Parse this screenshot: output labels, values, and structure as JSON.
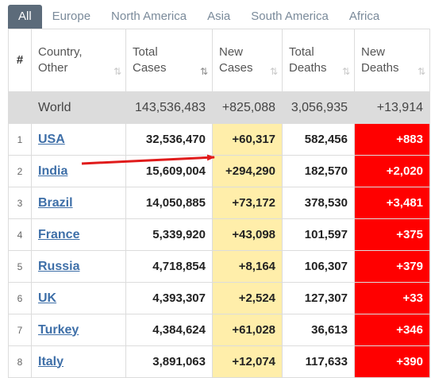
{
  "tabs": [
    "All",
    "Europe",
    "North America",
    "Asia",
    "South America",
    "Africa"
  ],
  "headers": {
    "hash": "#",
    "country_l1": "Country,",
    "country_l2": "Other",
    "total_cases_l1": "Total",
    "total_cases_l2": "Cases",
    "new_cases_l1": "New",
    "new_cases_l2": "Cases",
    "total_deaths_l1": "Total",
    "total_deaths_l2": "Deaths",
    "new_deaths_l1": "New",
    "new_deaths_l2": "Deaths"
  },
  "sort_icon": "⇅",
  "world": {
    "name": "World",
    "total_cases": "143,536,483",
    "new_cases": "+825,088",
    "total_deaths": "3,056,935",
    "new_deaths": "+13,914"
  },
  "rows": [
    {
      "idx": "1",
      "country": "USA",
      "total_cases": "32,536,470",
      "new_cases": "+60,317",
      "total_deaths": "582,456",
      "new_deaths": "+883"
    },
    {
      "idx": "2",
      "country": "India",
      "total_cases": "15,609,004",
      "new_cases": "+294,290",
      "total_deaths": "182,570",
      "new_deaths": "+2,020"
    },
    {
      "idx": "3",
      "country": "Brazil",
      "total_cases": "14,050,885",
      "new_cases": "+73,172",
      "total_deaths": "378,530",
      "new_deaths": "+3,481"
    },
    {
      "idx": "4",
      "country": "France",
      "total_cases": "5,339,920",
      "new_cases": "+43,098",
      "total_deaths": "101,597",
      "new_deaths": "+375"
    },
    {
      "idx": "5",
      "country": "Russia",
      "total_cases": "4,718,854",
      "new_cases": "+8,164",
      "total_deaths": "106,307",
      "new_deaths": "+379"
    },
    {
      "idx": "6",
      "country": "UK",
      "total_cases": "4,393,307",
      "new_cases": "+2,524",
      "total_deaths": "127,307",
      "new_deaths": "+33"
    },
    {
      "idx": "7",
      "country": "Turkey",
      "total_cases": "4,384,624",
      "new_cases": "+61,028",
      "total_deaths": "36,613",
      "new_deaths": "+346"
    },
    {
      "idx": "8",
      "country": "Italy",
      "total_cases": "3,891,063",
      "new_cases": "+12,074",
      "total_deaths": "117,633",
      "new_deaths": "+390"
    }
  ],
  "colors": {
    "tab_active_bg": "#5c6b7a",
    "new_cases_bg": "#ffeeaa",
    "new_deaths_bg": "#ff0000",
    "world_row_bg": "#dcdcdc",
    "link": "#3e6fa8",
    "arrow": "#e01b1b"
  },
  "annotation": {
    "type": "red-arrow",
    "points_to": "rows.1.new_cases"
  }
}
